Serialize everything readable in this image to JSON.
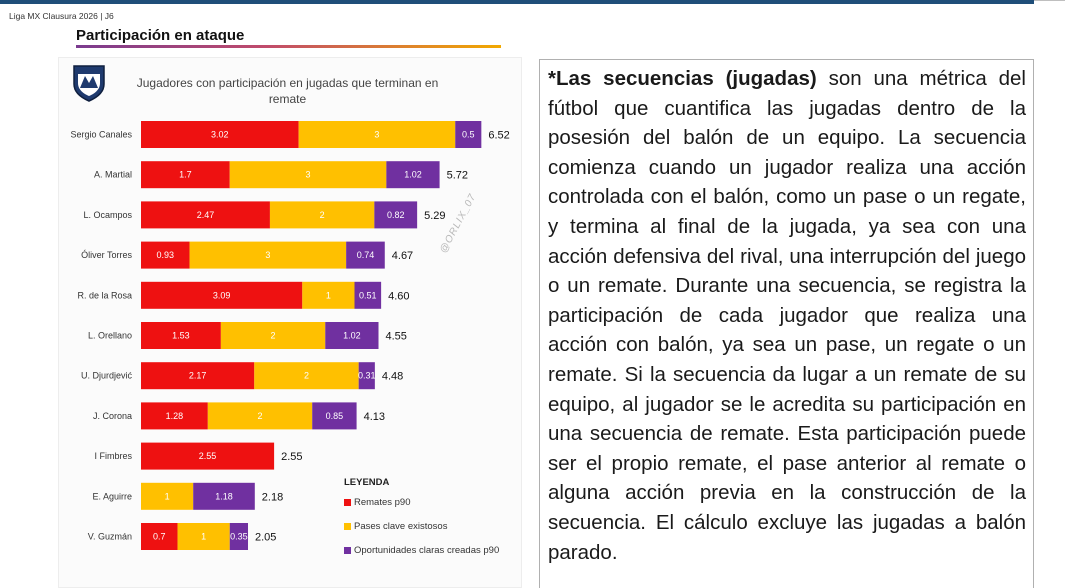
{
  "header": {
    "label": "Liga MX Clausura 2026 | J6"
  },
  "section": {
    "title": "Participación en ataque"
  },
  "chart": {
    "title": "Jugadores con participación en jugadas que terminan en remate",
    "watermark": "@ORLIX_07"
  },
  "legend": {
    "title": "LEYENDA",
    "items": [
      {
        "label": "Remates p90",
        "color": "#ee1111"
      },
      {
        "label": "Pases clave existosos",
        "color": "#ffc000"
      },
      {
        "label": "Oportunidades claras creadas p90",
        "color": "#7030a0"
      }
    ]
  },
  "explanation": {
    "lead": "*Las secuencias (jugadas)",
    "body": " son una métrica del fútbol que cuantifica las jugadas dentro de la posesión del balón de un equipo. La secuencia comienza cuando un jugador realiza una acción controlada con el balón, como un pase o un regate, y termina al final de la jugada, ya sea con una acción defensiva del rival, una interrupción del juego o un remate. Durante una secuencia, se registra la participación de cada jugador que realiza una acción con balón, ya sea un pase, un regate o un remate. Si la secuencia da lugar a un remate de su equipo, al jugador se le acredita su participación en una secuencia de remate. Esta participación puede ser el propio remate, el pase anterior al remate o alguna acción previa en la construcción de la secuencia. El cálculo excluye las jugadas a balón parado."
  },
  "chart_data": {
    "type": "bar",
    "orientation": "horizontal",
    "stacked": true,
    "title": "Jugadores con participación en jugadas que terminan en remate",
    "categories": [
      "Sergio Canales",
      "A. Martial",
      "L. Ocampos",
      "Óliver Torres",
      "R. de la Rosa",
      "L. Orellano",
      "U. Djurdjević",
      "J. Corona",
      "I Fimbres",
      "E. Aguirre",
      "V. Guzmán"
    ],
    "series": [
      {
        "name": "Remates p90",
        "color": "#ee1111",
        "values": [
          3.02,
          1.7,
          2.47,
          0.93,
          3.09,
          1.53,
          2.17,
          1.28,
          2.55,
          0,
          0.7
        ]
      },
      {
        "name": "Pases clave existosos",
        "color": "#ffc000",
        "values": [
          3,
          3,
          2,
          3,
          1,
          2,
          2,
          2,
          0,
          1,
          1
        ]
      },
      {
        "name": "Oportunidades claras creadas p90",
        "color": "#7030a0",
        "values": [
          0.5,
          1.02,
          0.82,
          0.74,
          0.51,
          1.02,
          0.31,
          0.85,
          0,
          1.18,
          0.35
        ]
      }
    ],
    "totals": [
      "6.52",
      "5.72",
      "5.29",
      "4.67",
      "4.60",
      "4.55",
      "4.48",
      "4.13",
      "2.55",
      "2.18",
      "2.05"
    ],
    "xlim": [
      0,
      6.52
    ],
    "grid": false,
    "legend_position": "bottom-right"
  }
}
